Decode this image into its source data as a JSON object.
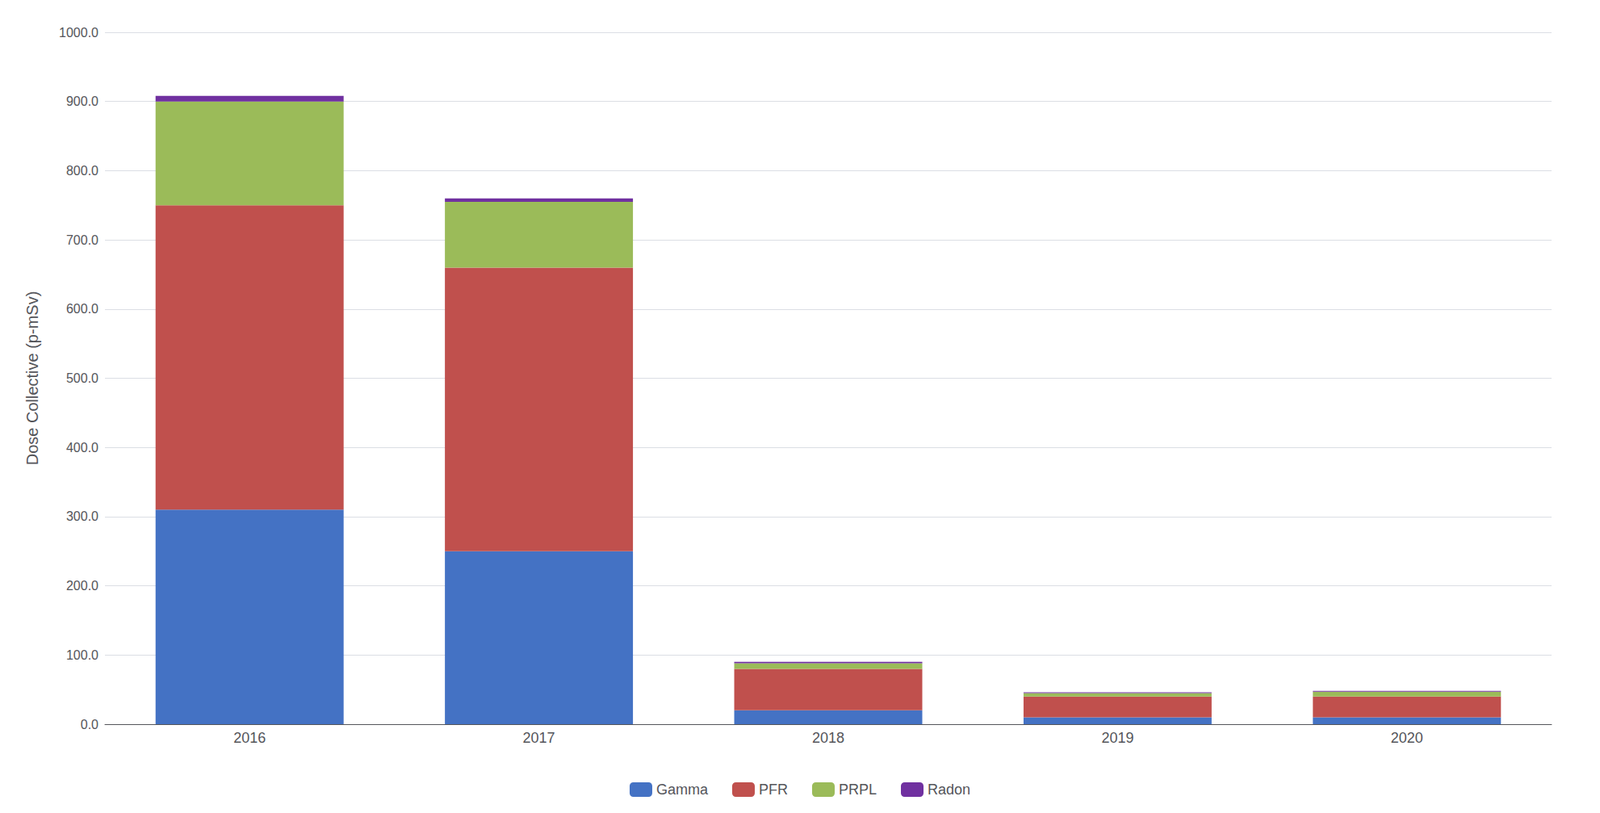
{
  "chart_data": {
    "type": "bar",
    "stacked": true,
    "ylabel": "Dose Collective (p-mSv)",
    "categories": [
      "2016",
      "2017",
      "2018",
      "2019",
      "2020"
    ],
    "series": [
      {
        "name": "Gamma",
        "color": "#4472C4",
        "values": [
          310,
          250,
          20,
          10,
          10
        ]
      },
      {
        "name": "PFR",
        "color": "#C0504D",
        "values": [
          440,
          410,
          60,
          30,
          30
        ]
      },
      {
        "name": "PRPL",
        "color": "#9BBB59",
        "values": [
          150,
          95,
          8,
          5,
          7
        ]
      },
      {
        "name": "Radon",
        "color": "#7030A0",
        "values": [
          8,
          5,
          2,
          1,
          1
        ]
      }
    ],
    "ylim": [
      0,
      1000
    ],
    "yticks": [
      {
        "value": 0,
        "label": "0.0"
      },
      {
        "value": 100,
        "label": "100.0"
      },
      {
        "value": 200,
        "label": "200.0"
      },
      {
        "value": 300,
        "label": "300.0"
      },
      {
        "value": 400,
        "label": "400.0"
      },
      {
        "value": 500,
        "label": "500.0"
      },
      {
        "value": 600,
        "label": "600.0"
      },
      {
        "value": 700,
        "label": "700.0"
      },
      {
        "value": 800,
        "label": "800.0"
      },
      {
        "value": 900,
        "label": "900.0"
      },
      {
        "value": 1000,
        "label": "1000.0"
      }
    ],
    "grid": true,
    "legend": "bottom"
  }
}
